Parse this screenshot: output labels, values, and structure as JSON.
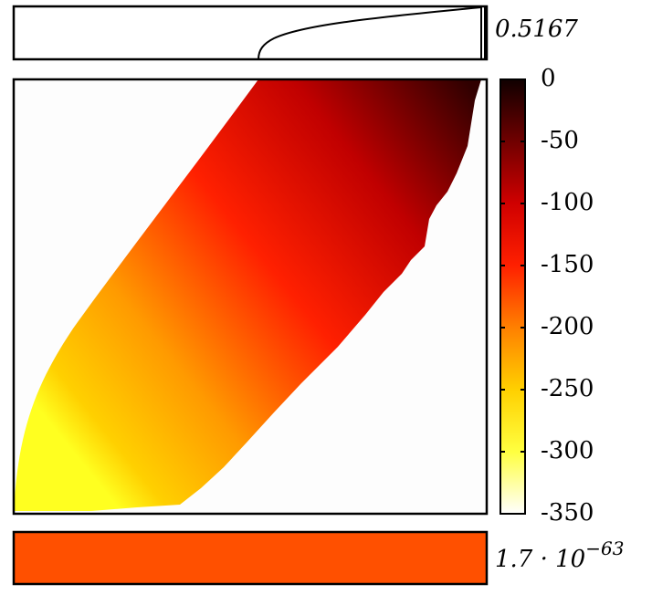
{
  "chart_data": {
    "type": "heatmap",
    "top_label": "0.5167",
    "bottom_label": {
      "base": "1.7 · 10",
      "exponent": "−63"
    },
    "bottom_color": "#ff5000",
    "colorbar": {
      "ylim": [
        -350,
        0
      ],
      "yticks": [
        0,
        -50,
        -100,
        -150,
        -200,
        -250,
        -300,
        -350
      ],
      "colors": [
        "#ffffff",
        "#ffff40",
        "#ffd000",
        "#ff8000",
        "#ff2000",
        "#d00000",
        "#700000",
        "#100000"
      ]
    }
  }
}
